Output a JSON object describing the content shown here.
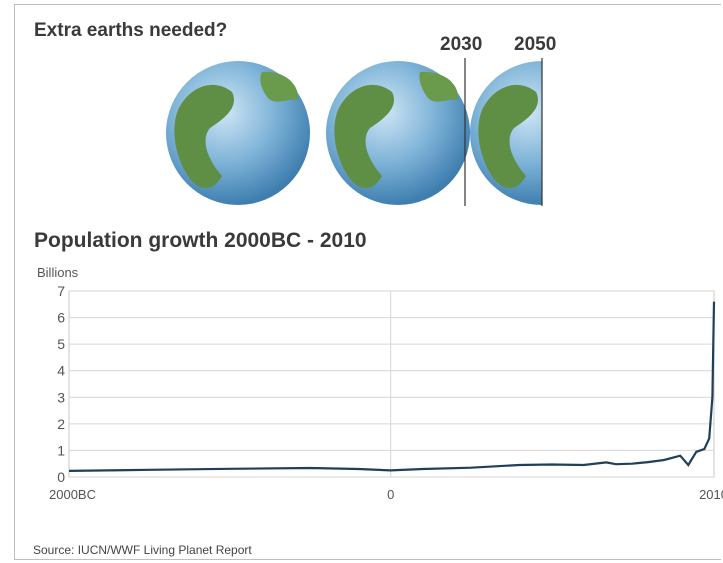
{
  "header": {
    "earths_title": "Extra earths needed?",
    "year_a": "2030",
    "year_b": "2050"
  },
  "globe_colors": {
    "ocean": "#7eb3d8",
    "land": "#5f8f45"
  },
  "chart_data": {
    "type": "line",
    "title": "Population growth 2000BC - 2010",
    "ylabel": "Billions",
    "xlabel": "",
    "x_tick_labels": [
      "2000BC",
      "0",
      "2010"
    ],
    "y_ticks": [
      0,
      1,
      2,
      3,
      4,
      5,
      6,
      7
    ],
    "ylim": [
      0,
      7
    ],
    "xlim": [
      -2000,
      2010
    ],
    "grid": true,
    "line_color": "#1f3f5a",
    "series": [
      {
        "x": [
          -2000,
          -1500,
          -1000,
          -500,
          -200,
          0,
          200,
          500,
          800,
          1000,
          1200,
          1340,
          1400,
          1500,
          1600,
          1700,
          1800,
          1850,
          1900,
          1950,
          1980,
          2000,
          2010
        ],
        "values": [
          0.23,
          0.27,
          0.31,
          0.34,
          0.3,
          0.25,
          0.3,
          0.35,
          0.45,
          0.47,
          0.45,
          0.55,
          0.48,
          0.5,
          0.56,
          0.64,
          0.8,
          0.45,
          0.95,
          1.05,
          1.45,
          3.0,
          6.6
        ]
      }
    ]
  },
  "source": "Source: IUCN/WWF Living Planet Report"
}
